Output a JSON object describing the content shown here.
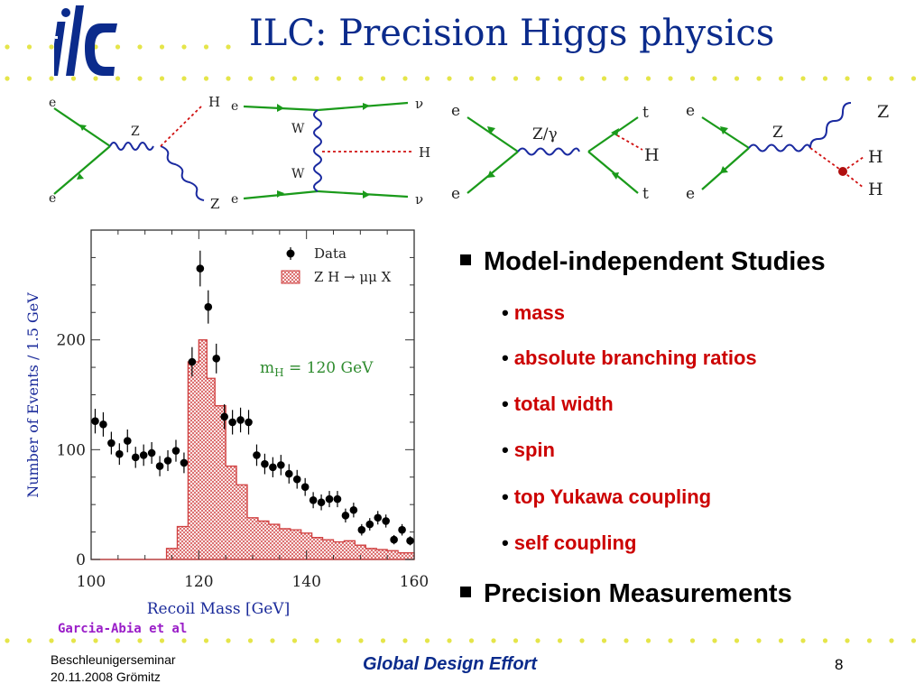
{
  "slide": {
    "title": "ILC: Precision Higgs physics",
    "logo_text": "ilc",
    "page_number": "8",
    "footer_org": "Global Design Effort",
    "footer_left_line1": "Beschleunigerseminar",
    "footer_left_line2": "20.11.2008   Grömitz",
    "credit": "Garcia-Abia et al",
    "colors": {
      "title": "#0b2b8c",
      "bullet_text": "#cc0000",
      "dots": "#e5e54a",
      "credit": "#9a1ec8"
    }
  },
  "diagrams": [
    {
      "labels": [
        "e",
        "e",
        "Z",
        "H",
        "Z"
      ]
    },
    {
      "labels": [
        "e",
        "e",
        "W",
        "W",
        "ν",
        "H",
        "ν"
      ]
    },
    {
      "labels": [
        "e",
        "e",
        "Z/γ",
        "t",
        "H",
        "t"
      ]
    },
    {
      "labels": [
        "e",
        "e",
        "Z",
        "Z",
        "H",
        "H"
      ]
    }
  ],
  "content": {
    "heading1": "Model-independent Studies",
    "bullets": [
      "mass",
      "absolute branching ratios",
      "total width",
      "spin",
      "top Yukawa coupling",
      "self coupling"
    ],
    "heading2": "Precision Measurements"
  },
  "chart_data": {
    "type": "scatter",
    "xlabel": "Recoil Mass  [GeV]",
    "ylabel": "Number of Events / 1.5 GeV",
    "xlim": [
      100,
      160
    ],
    "ylim": [
      0,
      300
    ],
    "xticks": [
      "100",
      "120",
      "140",
      "160"
    ],
    "yticks": [
      "0",
      "100",
      "200"
    ],
    "legend": [
      "Data",
      "Z H → μμ X"
    ],
    "annotation": "m_H = 120 GeV",
    "annotation_main": "m",
    "annotation_sub": "H",
    "annotation_rest": " = 120  GeV",
    "series": [
      {
        "name": "Data",
        "x": [
          100.75,
          102.25,
          103.75,
          105.25,
          106.75,
          108.25,
          109.75,
          111.25,
          112.75,
          114.25,
          115.75,
          117.25,
          118.75,
          120.25,
          121.75,
          123.25,
          124.75,
          126.25,
          127.75,
          129.25,
          130.75,
          132.25,
          133.75,
          135.25,
          136.75,
          138.25,
          139.75,
          141.25,
          142.75,
          144.25,
          145.75,
          147.25,
          148.75,
          150.25,
          151.75,
          153.25,
          154.75,
          156.25,
          157.75,
          159.25
        ],
        "y": [
          126,
          123,
          106,
          96,
          108,
          93,
          95,
          97,
          85,
          90,
          99,
          88,
          180,
          265,
          230,
          183,
          130,
          125,
          127,
          125,
          95,
          87,
          84,
          86,
          78,
          73,
          66,
          54,
          52,
          55,
          55,
          40,
          45,
          27,
          32,
          38,
          35,
          18,
          27,
          17
        ]
      },
      {
        "name": "Z H → μμ X",
        "step_edges": [
          100,
          114,
          116,
          118,
          120,
          121.5,
          123,
          125,
          127,
          129,
          131,
          133,
          135,
          137,
          139,
          141,
          143,
          145,
          147,
          149,
          151,
          153,
          155,
          157,
          160
        ],
        "values": [
          0,
          10,
          30,
          180,
          200,
          165,
          140,
          85,
          68,
          38,
          35,
          32,
          28,
          27,
          24,
          20,
          18,
          16,
          17,
          13,
          10,
          9,
          8,
          6
        ]
      }
    ]
  }
}
